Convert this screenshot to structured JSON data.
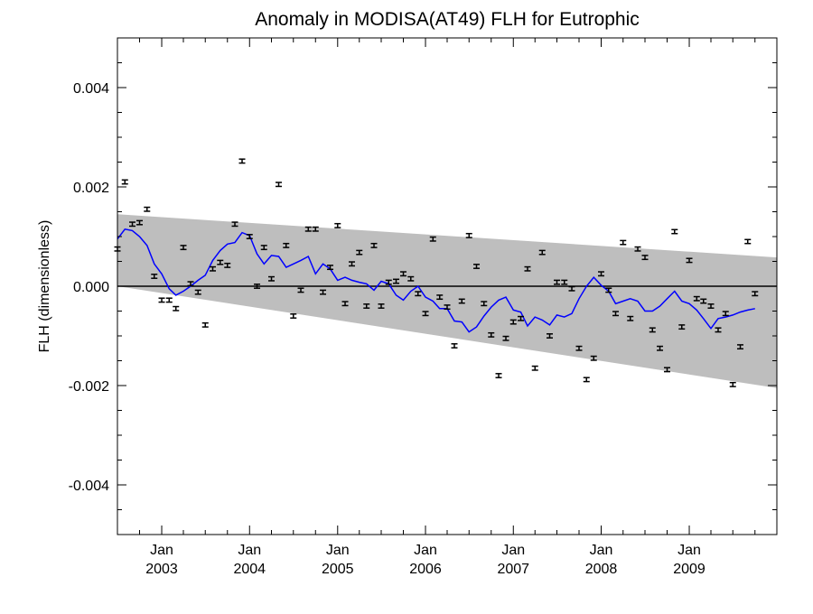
{
  "chart_data": {
    "type": "scatter",
    "title": "Anomaly in MODISA(AT49) FLH for Eutrophic",
    "xlabel": "",
    "ylabel": "FLH (dimensionless)",
    "xlim": [
      "2002-07-01",
      "2009-12-31"
    ],
    "ylim": [
      -0.005,
      0.005
    ],
    "y_ticks": [
      "0.004",
      "0.002",
      "0.000",
      "-0.002",
      "-0.004"
    ],
    "x_ticks": [
      {
        "date": "2003-01-01",
        "month": "Jan",
        "year": "2003"
      },
      {
        "date": "2004-01-01",
        "month": "Jan",
        "year": "2004"
      },
      {
        "date": "2005-01-01",
        "month": "Jan",
        "year": "2005"
      },
      {
        "date": "2006-01-01",
        "month": "Jan",
        "year": "2006"
      },
      {
        "date": "2007-01-01",
        "month": "Jan",
        "year": "2007"
      },
      {
        "date": "2008-01-01",
        "month": "Jan",
        "year": "2008"
      },
      {
        "date": "2009-01-01",
        "month": "Jan",
        "year": "2009"
      }
    ],
    "zero_line": 0.0,
    "trend_band": {
      "start": {
        "date": "2002-07-01",
        "upper": 0.00145,
        "lower": 0.0
      },
      "end": {
        "date": "2009-12-31",
        "upper": 0.00058,
        "lower": -0.00205
      }
    },
    "anomaly_points": [
      {
        "date": "2002-07-01",
        "y": 0.00075
      },
      {
        "date": "2002-08-01",
        "y": 0.0021
      },
      {
        "date": "2002-09-01",
        "y": 0.00125
      },
      {
        "date": "2002-10-01",
        "y": 0.00128
      },
      {
        "date": "2002-11-01",
        "y": 0.00155
      },
      {
        "date": "2002-12-01",
        "y": 0.0002
      },
      {
        "date": "2003-01-01",
        "y": -0.00028
      },
      {
        "date": "2003-02-01",
        "y": -0.00028
      },
      {
        "date": "2003-03-01",
        "y": -0.00045
      },
      {
        "date": "2003-04-01",
        "y": 0.00078
      },
      {
        "date": "2003-05-01",
        "y": 5e-05
      },
      {
        "date": "2003-06-01",
        "y": -0.00012
      },
      {
        "date": "2003-07-01",
        "y": -0.00078
      },
      {
        "date": "2003-08-01",
        "y": 0.00035
      },
      {
        "date": "2003-09-01",
        "y": 0.00048
      },
      {
        "date": "2003-10-01",
        "y": 0.00042
      },
      {
        "date": "2003-11-01",
        "y": 0.00125
      },
      {
        "date": "2003-12-01",
        "y": 0.00252
      },
      {
        "date": "2004-01-01",
        "y": 0.001
      },
      {
        "date": "2004-02-01",
        "y": 0.0
      },
      {
        "date": "2004-03-01",
        "y": 0.00078
      },
      {
        "date": "2004-04-01",
        "y": 0.00015
      },
      {
        "date": "2004-05-01",
        "y": 0.00205
      },
      {
        "date": "2004-06-01",
        "y": 0.00082
      },
      {
        "date": "2004-07-01",
        "y": -0.0006
      },
      {
        "date": "2004-08-01",
        "y": -8e-05
      },
      {
        "date": "2004-09-01",
        "y": 0.00115
      },
      {
        "date": "2004-10-01",
        "y": 0.00115
      },
      {
        "date": "2004-11-01",
        "y": -0.00012
      },
      {
        "date": "2004-12-01",
        "y": 0.00038
      },
      {
        "date": "2005-01-01",
        "y": 0.00122
      },
      {
        "date": "2005-02-01",
        "y": -0.00035
      },
      {
        "date": "2005-03-01",
        "y": 0.00045
      },
      {
        "date": "2005-04-01",
        "y": 0.00068
      },
      {
        "date": "2005-05-01",
        "y": -0.0004
      },
      {
        "date": "2005-06-01",
        "y": 0.00082
      },
      {
        "date": "2005-07-01",
        "y": -0.0004
      },
      {
        "date": "2005-08-01",
        "y": 8e-05
      },
      {
        "date": "2005-09-01",
        "y": 0.0001
      },
      {
        "date": "2005-10-01",
        "y": 0.00025
      },
      {
        "date": "2005-11-01",
        "y": 0.00015
      },
      {
        "date": "2005-12-01",
        "y": -0.00015
      },
      {
        "date": "2006-01-01",
        "y": -0.00055
      },
      {
        "date": "2006-02-01",
        "y": 0.00095
      },
      {
        "date": "2006-03-01",
        "y": -0.00022
      },
      {
        "date": "2006-04-01",
        "y": -0.00042
      },
      {
        "date": "2006-05-01",
        "y": -0.0012
      },
      {
        "date": "2006-06-01",
        "y": -0.0003
      },
      {
        "date": "2006-07-01",
        "y": 0.00102
      },
      {
        "date": "2006-08-01",
        "y": 0.0004
      },
      {
        "date": "2006-09-01",
        "y": -0.00035
      },
      {
        "date": "2006-10-01",
        "y": -0.00098
      },
      {
        "date": "2006-11-01",
        "y": -0.0018
      },
      {
        "date": "2006-12-01",
        "y": -0.00105
      },
      {
        "date": "2007-01-01",
        "y": -0.00072
      },
      {
        "date": "2007-02-01",
        "y": -0.00065
      },
      {
        "date": "2007-03-01",
        "y": 0.00035
      },
      {
        "date": "2007-04-01",
        "y": -0.00165
      },
      {
        "date": "2007-05-01",
        "y": 0.00068
      },
      {
        "date": "2007-06-01",
        "y": -0.001
      },
      {
        "date": "2007-07-01",
        "y": 8e-05
      },
      {
        "date": "2007-08-01",
        "y": 8e-05
      },
      {
        "date": "2007-09-01",
        "y": -5e-05
      },
      {
        "date": "2007-10-01",
        "y": -0.00125
      },
      {
        "date": "2007-11-01",
        "y": -0.00188
      },
      {
        "date": "2007-12-01",
        "y": -0.00145
      },
      {
        "date": "2008-01-01",
        "y": 0.00025
      },
      {
        "date": "2008-02-01",
        "y": -8e-05
      },
      {
        "date": "2008-03-01",
        "y": -0.00055
      },
      {
        "date": "2008-04-01",
        "y": 0.00088
      },
      {
        "date": "2008-05-01",
        "y": -0.00065
      },
      {
        "date": "2008-06-01",
        "y": 0.00075
      },
      {
        "date": "2008-07-01",
        "y": 0.00058
      },
      {
        "date": "2008-08-01",
        "y": -0.00088
      },
      {
        "date": "2008-09-01",
        "y": -0.00125
      },
      {
        "date": "2008-10-01",
        "y": -0.00168
      },
      {
        "date": "2008-11-01",
        "y": 0.0011
      },
      {
        "date": "2008-12-01",
        "y": -0.00082
      },
      {
        "date": "2009-01-01",
        "y": 0.00052
      },
      {
        "date": "2009-02-01",
        "y": -0.00025
      },
      {
        "date": "2009-03-01",
        "y": -0.0003
      },
      {
        "date": "2009-04-01",
        "y": -0.0004
      },
      {
        "date": "2009-05-01",
        "y": -0.00088
      },
      {
        "date": "2009-06-01",
        "y": -0.00055
      },
      {
        "date": "2009-07-01",
        "y": -0.00198
      },
      {
        "date": "2009-08-01",
        "y": -0.00122
      },
      {
        "date": "2009-09-01",
        "y": 0.0009
      },
      {
        "date": "2009-10-01",
        "y": -0.00015
      }
    ],
    "error_half_width": 4e-05,
    "smoothed_series": {
      "color": "#0000ff",
      "points": [
        {
          "date": "2002-07-01",
          "y": 0.00095
        },
        {
          "date": "2002-08-01",
          "y": 0.00115
        },
        {
          "date": "2002-09-01",
          "y": 0.00112
        },
        {
          "date": "2002-10-01",
          "y": 0.001
        },
        {
          "date": "2002-11-01",
          "y": 0.00082
        },
        {
          "date": "2002-12-01",
          "y": 0.00045
        },
        {
          "date": "2003-01-01",
          "y": 0.00025
        },
        {
          "date": "2003-02-01",
          "y": -5e-05
        },
        {
          "date": "2003-03-01",
          "y": -0.00018
        },
        {
          "date": "2003-04-01",
          "y": -0.0001
        },
        {
          "date": "2003-05-01",
          "y": 0.0
        },
        {
          "date": "2003-06-01",
          "y": 0.00012
        },
        {
          "date": "2003-07-01",
          "y": 0.00022
        },
        {
          "date": "2003-08-01",
          "y": 0.00052
        },
        {
          "date": "2003-09-01",
          "y": 0.00072
        },
        {
          "date": "2003-10-01",
          "y": 0.00085
        },
        {
          "date": "2003-11-01",
          "y": 0.00088
        },
        {
          "date": "2003-12-01",
          "y": 0.00108
        },
        {
          "date": "2004-01-01",
          "y": 0.00102
        },
        {
          "date": "2004-02-01",
          "y": 0.00065
        },
        {
          "date": "2004-03-01",
          "y": 0.00045
        },
        {
          "date": "2004-04-01",
          "y": 0.00062
        },
        {
          "date": "2004-05-01",
          "y": 0.0006
        },
        {
          "date": "2004-06-01",
          "y": 0.00038
        },
        {
          "date": "2004-07-01",
          "y": 0.00045
        },
        {
          "date": "2004-08-01",
          "y": 0.00052
        },
        {
          "date": "2004-09-01",
          "y": 0.0006
        },
        {
          "date": "2004-10-01",
          "y": 0.00025
        },
        {
          "date": "2004-11-01",
          "y": 0.00045
        },
        {
          "date": "2004-12-01",
          "y": 0.00035
        },
        {
          "date": "2005-01-01",
          "y": 0.00012
        },
        {
          "date": "2005-02-01",
          "y": 0.00018
        },
        {
          "date": "2005-03-01",
          "y": 0.00012
        },
        {
          "date": "2005-04-01",
          "y": 8e-05
        },
        {
          "date": "2005-05-01",
          "y": 5e-05
        },
        {
          "date": "2005-06-01",
          "y": -8e-05
        },
        {
          "date": "2005-07-01",
          "y": 0.0001
        },
        {
          "date": "2005-08-01",
          "y": 5e-05
        },
        {
          "date": "2005-09-01",
          "y": -0.00018
        },
        {
          "date": "2005-10-01",
          "y": -0.00028
        },
        {
          "date": "2005-11-01",
          "y": -0.0001
        },
        {
          "date": "2005-12-01",
          "y": 0.0
        },
        {
          "date": "2006-01-01",
          "y": -0.00022
        },
        {
          "date": "2006-02-01",
          "y": -0.0003
        },
        {
          "date": "2006-03-01",
          "y": -0.00045
        },
        {
          "date": "2006-04-01",
          "y": -0.00045
        },
        {
          "date": "2006-05-01",
          "y": -0.0007
        },
        {
          "date": "2006-06-01",
          "y": -0.00072
        },
        {
          "date": "2006-07-01",
          "y": -0.00092
        },
        {
          "date": "2006-08-01",
          "y": -0.00082
        },
        {
          "date": "2006-09-01",
          "y": -0.0006
        },
        {
          "date": "2006-10-01",
          "y": -0.00042
        },
        {
          "date": "2006-11-01",
          "y": -0.00028
        },
        {
          "date": "2006-12-01",
          "y": -0.00022
        },
        {
          "date": "2007-01-01",
          "y": -0.00048
        },
        {
          "date": "2007-02-01",
          "y": -0.00052
        },
        {
          "date": "2007-03-01",
          "y": -0.0008
        },
        {
          "date": "2007-04-01",
          "y": -0.00062
        },
        {
          "date": "2007-05-01",
          "y": -0.00068
        },
        {
          "date": "2007-06-01",
          "y": -0.00078
        },
        {
          "date": "2007-07-01",
          "y": -0.00058
        },
        {
          "date": "2007-08-01",
          "y": -0.00062
        },
        {
          "date": "2007-09-01",
          "y": -0.00055
        },
        {
          "date": "2007-10-01",
          "y": -0.00025
        },
        {
          "date": "2007-11-01",
          "y": 0.0
        },
        {
          "date": "2007-12-01",
          "y": 0.00018
        },
        {
          "date": "2008-01-01",
          "y": 2e-05
        },
        {
          "date": "2008-02-01",
          "y": -0.0001
        },
        {
          "date": "2008-03-01",
          "y": -0.00035
        },
        {
          "date": "2008-04-01",
          "y": -0.0003
        },
        {
          "date": "2008-05-01",
          "y": -0.00025
        },
        {
          "date": "2008-06-01",
          "y": -0.0003
        },
        {
          "date": "2008-07-01",
          "y": -0.0005
        },
        {
          "date": "2008-08-01",
          "y": -0.0005
        },
        {
          "date": "2008-09-01",
          "y": -0.0004
        },
        {
          "date": "2008-10-01",
          "y": -0.00025
        },
        {
          "date": "2008-11-01",
          "y": -0.0001
        },
        {
          "date": "2008-12-01",
          "y": -0.0003
        },
        {
          "date": "2009-01-01",
          "y": -0.00035
        },
        {
          "date": "2009-02-01",
          "y": -0.00048
        },
        {
          "date": "2009-03-01",
          "y": -0.00065
        },
        {
          "date": "2009-04-01",
          "y": -0.00085
        },
        {
          "date": "2009-05-01",
          "y": -0.00065
        },
        {
          "date": "2009-06-01",
          "y": -0.00062
        },
        {
          "date": "2009-07-01",
          "y": -0.00058
        },
        {
          "date": "2009-08-01",
          "y": -0.00052
        },
        {
          "date": "2009-09-01",
          "y": -0.00048
        },
        {
          "date": "2009-10-01",
          "y": -0.00045
        }
      ]
    },
    "colors": {
      "band": "#bebebe",
      "smoothed_line": "#0000ff",
      "points": "#000000",
      "axes": "#000000"
    },
    "grid": false
  }
}
